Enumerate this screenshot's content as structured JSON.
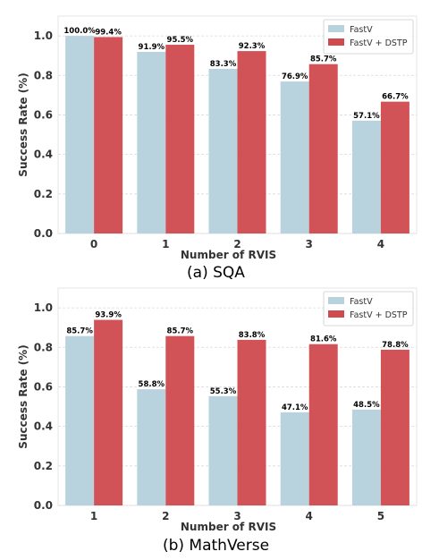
{
  "colors": {
    "fastv": "#b9d3de",
    "dstp": "#d04a4e",
    "grid": "#d9d9d9",
    "frame": "#e5e5e5"
  },
  "chart_data": [
    {
      "type": "bar",
      "caption": "(a) SQA",
      "xlabel": "Number of RVIS",
      "ylabel": "Success Rate (%)",
      "ylim": [
        0,
        1.1
      ],
      "yticks": [
        "0.0",
        "0.2",
        "0.4",
        "0.6",
        "0.8",
        "1.0"
      ],
      "ytick_values": [
        0,
        0.2,
        0.4,
        0.6,
        0.8,
        1.0
      ],
      "grid": true,
      "legend": "top-right",
      "categories": [
        "0",
        "1",
        "2",
        "3",
        "4"
      ],
      "series": [
        {
          "name": "FastV",
          "values": [
            1.0,
            0.919,
            0.833,
            0.769,
            0.571
          ],
          "labels": [
            "100.0%",
            "91.9%",
            "83.3%",
            "76.9%",
            "57.1%"
          ]
        },
        {
          "name": "FastV + DSTP",
          "values": [
            0.994,
            0.955,
            0.923,
            0.857,
            0.667
          ],
          "labels": [
            "99.4%",
            "95.5%",
            "92.3%",
            "85.7%",
            "66.7%"
          ]
        }
      ]
    },
    {
      "type": "bar",
      "caption": "(b) MathVerse",
      "xlabel": "Number of RVIS",
      "ylabel": "Success Rate (%)",
      "ylim": [
        0,
        1.1
      ],
      "yticks": [
        "0.0",
        "0.2",
        "0.4",
        "0.6",
        "0.8",
        "1.0"
      ],
      "ytick_values": [
        0,
        0.2,
        0.4,
        0.6,
        0.8,
        1.0
      ],
      "grid": true,
      "legend": "top-right",
      "categories": [
        "1",
        "2",
        "3",
        "4",
        "5"
      ],
      "series": [
        {
          "name": "FastV",
          "values": [
            0.857,
            0.588,
            0.553,
            0.471,
            0.485
          ],
          "labels": [
            "85.7%",
            "58.8%",
            "55.3%",
            "47.1%",
            "48.5%"
          ]
        },
        {
          "name": "FastV + DSTP",
          "values": [
            0.939,
            0.857,
            0.838,
            0.816,
            0.788
          ],
          "labels": [
            "93.9%",
            "85.7%",
            "83.8%",
            "81.6%",
            "78.8%"
          ]
        }
      ]
    }
  ]
}
